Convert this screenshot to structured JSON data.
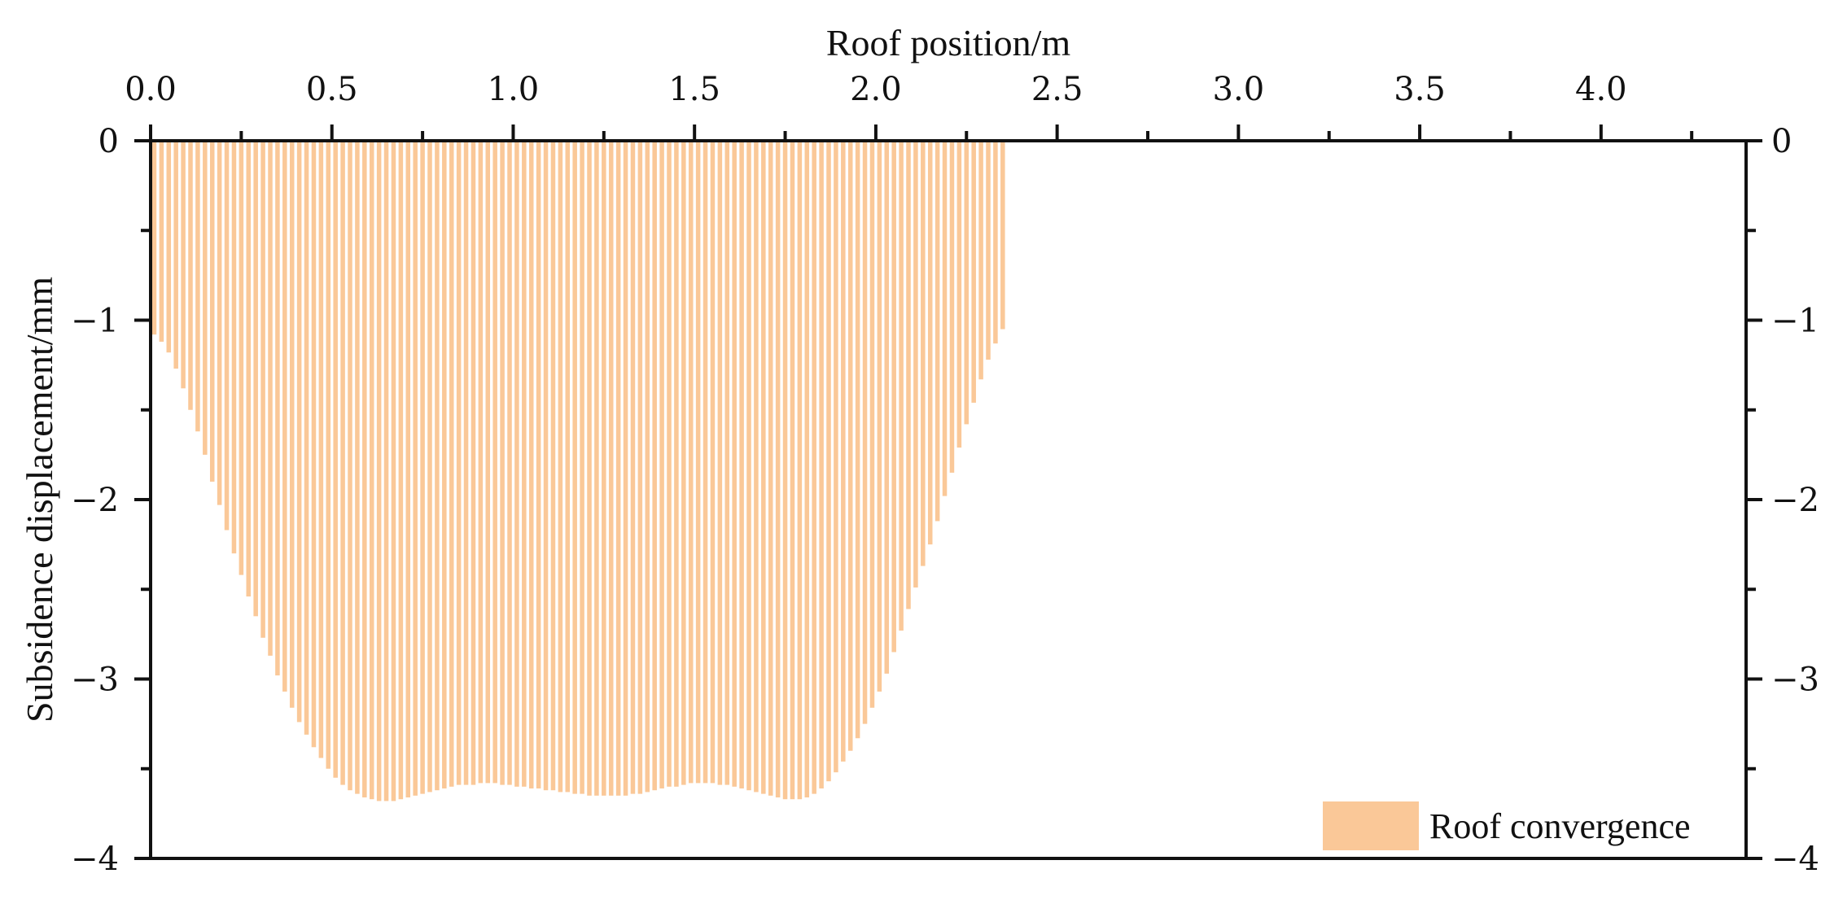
{
  "chart_data": {
    "type": "bar",
    "xlabel": "Roof position/m",
    "ylabel": "Subsidence displacement/mm",
    "xlim": [
      0,
      4.4
    ],
    "ylim": [
      -4,
      0
    ],
    "x_axis_position": "top",
    "x_ticks": [
      "0.0",
      "0.5",
      "1.0",
      "1.5",
      "2.0",
      "2.5",
      "3.0",
      "3.5",
      "4.0"
    ],
    "y_ticks_left": [
      "0",
      "−1",
      "−2",
      "−3",
      "−4"
    ],
    "y_ticks_right": [
      "0",
      "−1",
      "−2",
      "−3",
      "−4"
    ],
    "grid": false,
    "legend_position": "bottom-right",
    "bar_color": "#FAC898",
    "series": [
      {
        "name": "Roof convergence",
        "x_start": 0.0,
        "x_step": 0.02,
        "values": [
          -1.08,
          -1.12,
          -1.18,
          -1.27,
          -1.38,
          -1.5,
          -1.62,
          -1.75,
          -1.9,
          -2.03,
          -2.17,
          -2.3,
          -2.42,
          -2.54,
          -2.65,
          -2.77,
          -2.87,
          -2.98,
          -3.07,
          -3.16,
          -3.24,
          -3.31,
          -3.38,
          -3.44,
          -3.5,
          -3.55,
          -3.59,
          -3.62,
          -3.64,
          -3.66,
          -3.67,
          -3.68,
          -3.68,
          -3.68,
          -3.67,
          -3.66,
          -3.65,
          -3.64,
          -3.63,
          -3.62,
          -3.61,
          -3.6,
          -3.59,
          -3.59,
          -3.59,
          -3.58,
          -3.58,
          -3.58,
          -3.59,
          -3.59,
          -3.6,
          -3.6,
          -3.61,
          -3.61,
          -3.62,
          -3.62,
          -3.63,
          -3.63,
          -3.64,
          -3.64,
          -3.65,
          -3.65,
          -3.65,
          -3.65,
          -3.65,
          -3.65,
          -3.64,
          -3.64,
          -3.63,
          -3.62,
          -3.61,
          -3.6,
          -3.6,
          -3.59,
          -3.58,
          -3.58,
          -3.58,
          -3.58,
          -3.59,
          -3.59,
          -3.6,
          -3.61,
          -3.62,
          -3.63,
          -3.64,
          -3.65,
          -3.66,
          -3.67,
          -3.67,
          -3.67,
          -3.66,
          -3.64,
          -3.61,
          -3.57,
          -3.52,
          -3.46,
          -3.4,
          -3.33,
          -3.25,
          -3.16,
          -3.07,
          -2.97,
          -2.85,
          -2.73,
          -2.61,
          -2.49,
          -2.37,
          -2.25,
          -2.12,
          -1.98,
          -1.85,
          -1.71,
          -1.58,
          -1.46,
          -1.33,
          -1.22,
          -1.13,
          -1.05
        ]
      }
    ]
  }
}
